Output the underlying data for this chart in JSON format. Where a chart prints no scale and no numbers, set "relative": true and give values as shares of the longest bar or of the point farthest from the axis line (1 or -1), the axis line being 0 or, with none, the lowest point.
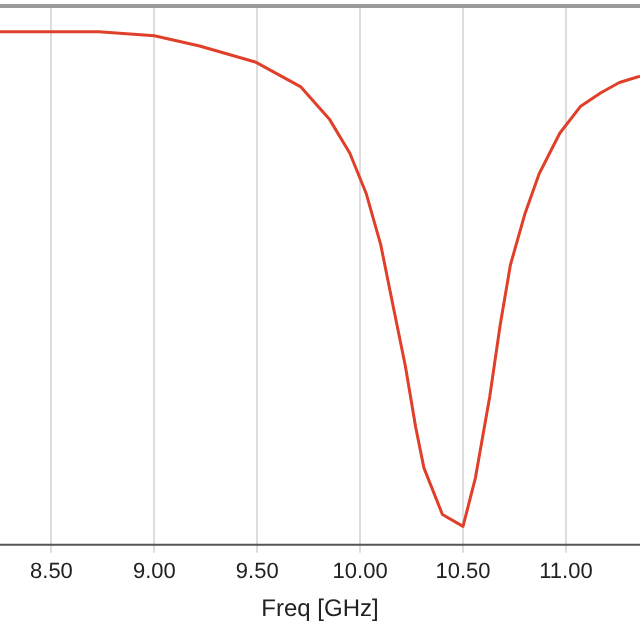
{
  "chart_data": {
    "type": "line",
    "xlabel": "Freq [GHz]",
    "relative": true,
    "grid": "x",
    "marker": "none",
    "legend": false,
    "xlim": [
      8.25,
      11.36
    ],
    "xticks": [
      {
        "value": 8.5,
        "label": "8.50"
      },
      {
        "value": 9,
        "label": "9.00"
      },
      {
        "value": 9.5,
        "label": "9.50"
      },
      {
        "value": 10,
        "label": "10.00"
      },
      {
        "value": 10.5,
        "label": "10.50"
      },
      {
        "value": 11,
        "label": "11.00"
      }
    ],
    "series": [
      {
        "color": "#e0402a",
        "x": [
          8.25,
          8.73,
          9.0,
          9.22,
          9.49,
          9.71,
          9.85,
          9.95,
          10.03,
          10.1,
          10.16,
          10.22,
          10.27,
          10.31,
          10.4,
          10.5,
          10.56,
          10.63,
          10.68,
          10.73,
          10.8,
          10.87,
          10.97,
          11.07,
          11.17,
          11.26,
          11.36
        ],
        "values": [
          1.0,
          1.0,
          0.992,
          0.972,
          0.941,
          0.893,
          0.83,
          0.763,
          0.684,
          0.585,
          0.466,
          0.348,
          0.229,
          0.15,
          0.059,
          0.036,
          0.13,
          0.289,
          0.427,
          0.545,
          0.644,
          0.723,
          0.802,
          0.854,
          0.881,
          0.901,
          0.913
        ]
      }
    ]
  }
}
